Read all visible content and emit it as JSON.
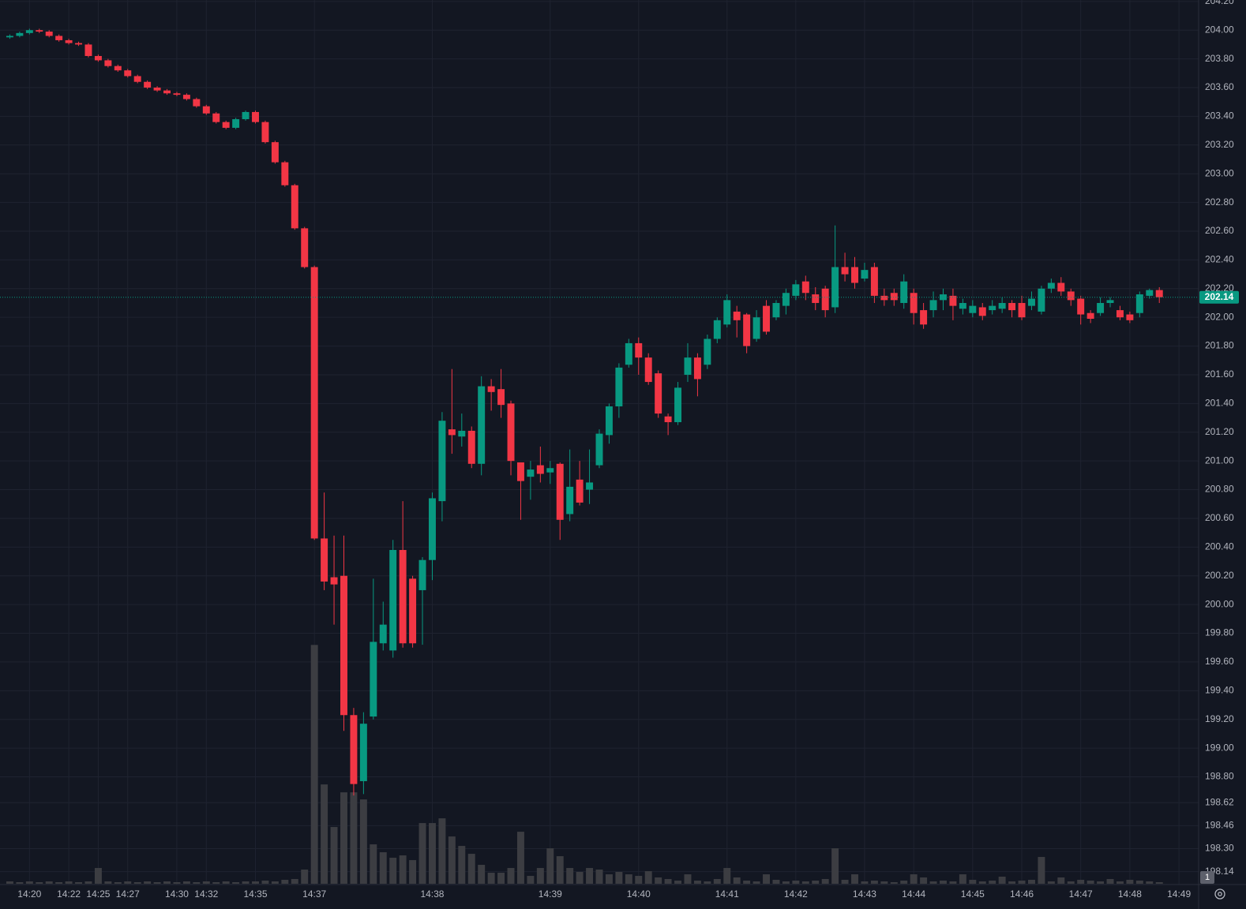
{
  "chart_data": {
    "type": "candlestick",
    "up_color": "#089981",
    "down_color": "#f23645",
    "volume_color": "#3c3d42",
    "grid": true,
    "ylim": [
      198.05,
      204.21
    ],
    "yticks": [
      {
        "value": 204.2,
        "label": "204.20"
      },
      {
        "value": 204.0,
        "label": "204.00"
      },
      {
        "value": 203.8,
        "label": "203.80"
      },
      {
        "value": 203.6,
        "label": "203.60"
      },
      {
        "value": 203.4,
        "label": "203.40"
      },
      {
        "value": 203.2,
        "label": "203.20"
      },
      {
        "value": 203.0,
        "label": "203.00"
      },
      {
        "value": 202.8,
        "label": "202.80"
      },
      {
        "value": 202.6,
        "label": "202.60"
      },
      {
        "value": 202.4,
        "label": "202.40"
      },
      {
        "value": 202.2,
        "label": "202.20"
      },
      {
        "value": 202.0,
        "label": "202.00"
      },
      {
        "value": 201.8,
        "label": "201.80"
      },
      {
        "value": 201.6,
        "label": "201.60"
      },
      {
        "value": 201.4,
        "label": "201.40"
      },
      {
        "value": 201.2,
        "label": "201.20"
      },
      {
        "value": 201.0,
        "label": "201.00"
      },
      {
        "value": 200.8,
        "label": "200.80"
      },
      {
        "value": 200.6,
        "label": "200.60"
      },
      {
        "value": 200.4,
        "label": "200.40"
      },
      {
        "value": 200.2,
        "label": "200.20"
      },
      {
        "value": 200.0,
        "label": "200.00"
      },
      {
        "value": 199.8,
        "label": "199.80"
      },
      {
        "value": 199.6,
        "label": "199.60"
      },
      {
        "value": 199.4,
        "label": "199.40"
      },
      {
        "value": 199.2,
        "label": "199.20"
      },
      {
        "value": 199.0,
        "label": "199.00"
      },
      {
        "value": 198.8,
        "label": "198.80"
      },
      198.62,
      198.46,
      {
        "value": 198.3,
        "label": "198.30"
      },
      198.14
    ],
    "xlim": [
      -1,
      121
    ],
    "xticks": [
      {
        "value": 2,
        "label": "14:20"
      },
      {
        "value": 6,
        "label": "14:22"
      },
      {
        "value": 9,
        "label": "14:25"
      },
      {
        "value": 12,
        "label": "14:27"
      },
      {
        "value": 17,
        "label": "14:30"
      },
      {
        "value": 20,
        "label": "14:32"
      },
      {
        "value": 25,
        "label": "14:35"
      },
      {
        "value": 31,
        "label": "14:37"
      },
      {
        "value": 43,
        "label": "14:38"
      },
      {
        "value": 55,
        "label": "14:39"
      },
      {
        "value": 64,
        "label": "14:40"
      },
      {
        "value": 73,
        "label": "14:41"
      },
      {
        "value": 80,
        "label": "14:42"
      },
      {
        "value": 87,
        "label": "14:43"
      },
      {
        "value": 92,
        "label": "14:44"
      },
      {
        "value": 98,
        "label": "14:45"
      },
      {
        "value": 103,
        "label": "14:46"
      },
      {
        "value": 109,
        "label": "14:47"
      },
      {
        "value": 114,
        "label": "14:48"
      },
      {
        "value": 119,
        "label": "14:49"
      }
    ],
    "last_price": 202.14,
    "scale_button": "1",
    "open": [
      203.95,
      203.96,
      203.98,
      204.0,
      203.99,
      203.96,
      203.93,
      203.91,
      203.9,
      203.82,
      203.79,
      203.75,
      203.72,
      203.68,
      203.64,
      203.6,
      203.58,
      203.56,
      203.55,
      203.52,
      203.47,
      203.42,
      203.36,
      203.32,
      203.38,
      203.43,
      203.36,
      203.22,
      203.08,
      202.92,
      202.62,
      202.35,
      200.46,
      200.19,
      200.2,
      199.23,
      198.77,
      199.22,
      199.73,
      199.68,
      200.38,
      200.18,
      200.1,
      200.31,
      200.72,
      201.22,
      201.17,
      201.21,
      200.98,
      201.52,
      201.5,
      201.4,
      200.99,
      200.89,
      200.97,
      200.92,
      200.98,
      200.63,
      200.87,
      200.8,
      200.97,
      201.18,
      201.38,
      201.67,
      201.82,
      201.72,
      201.61,
      201.31,
      201.27,
      201.6,
      201.72,
      201.67,
      201.85,
      201.95,
      202.04,
      202.02,
      201.85,
      202.08,
      202.0,
      202.08,
      202.15,
      202.25,
      202.16,
      202.2,
      202.07,
      202.35,
      202.35,
      202.27,
      202.35,
      202.15,
      202.17,
      202.1,
      202.17,
      202.05,
      202.05,
      202.12,
      202.15,
      202.06,
      202.03,
      202.07,
      202.05,
      202.06,
      202.1,
      202.1,
      202.08,
      202.04,
      202.2,
      202.24,
      202.18,
      202.13,
      202.03,
      202.03,
      202.1,
      202.05,
      202.02,
      202.03,
      202.15,
      202.19
    ],
    "high": [
      203.97,
      203.99,
      204.01,
      204.01,
      204.0,
      203.97,
      203.94,
      203.92,
      203.91,
      203.83,
      203.8,
      203.76,
      203.73,
      203.69,
      203.65,
      203.61,
      203.59,
      203.57,
      203.56,
      203.53,
      203.48,
      203.43,
      203.37,
      203.39,
      203.44,
      203.44,
      203.37,
      203.23,
      203.09,
      202.93,
      202.63,
      202.36,
      200.78,
      200.48,
      200.48,
      199.28,
      199.25,
      200.18,
      200.02,
      200.45,
      200.72,
      200.2,
      200.33,
      200.78,
      201.34,
      201.64,
      201.33,
      201.24,
      201.59,
      201.57,
      201.64,
      201.42,
      200.99,
      201.0,
      201.1,
      201.0,
      200.99,
      201.08,
      201.0,
      201.08,
      201.22,
      201.4,
      201.68,
      201.85,
      201.86,
      201.75,
      201.63,
      201.33,
      201.55,
      201.82,
      201.75,
      201.88,
      202.0,
      202.16,
      202.08,
      202.03,
      202.05,
      202.12,
      202.12,
      202.2,
      202.26,
      202.29,
      202.21,
      202.22,
      202.64,
      202.45,
      202.42,
      202.38,
      202.38,
      202.2,
      202.2,
      202.3,
      202.2,
      202.1,
      202.18,
      202.2,
      202.2,
      202.13,
      202.12,
      202.1,
      202.12,
      202.14,
      202.12,
      202.15,
      202.18,
      202.22,
      202.27,
      202.28,
      202.2,
      202.15,
      202.05,
      202.14,
      202.14,
      202.08,
      202.04,
      202.18,
      202.2,
      202.21
    ],
    "low": [
      203.94,
      203.95,
      203.97,
      203.98,
      203.95,
      203.92,
      203.9,
      203.89,
      203.81,
      203.78,
      203.74,
      203.71,
      203.67,
      203.63,
      203.59,
      203.57,
      203.55,
      203.54,
      203.51,
      203.46,
      203.41,
      203.35,
      203.31,
      203.31,
      203.37,
      203.35,
      203.21,
      203.07,
      202.91,
      202.61,
      202.34,
      200.45,
      200.1,
      199.86,
      199.12,
      198.67,
      198.68,
      199.2,
      199.68,
      199.63,
      199.7,
      199.7,
      199.72,
      200.17,
      200.58,
      201.05,
      201.1,
      200.95,
      200.9,
      201.35,
      201.3,
      200.9,
      200.59,
      200.73,
      200.85,
      200.84,
      200.45,
      200.58,
      200.69,
      200.7,
      200.95,
      201.12,
      201.3,
      201.65,
      201.6,
      201.53,
      201.3,
      201.18,
      201.25,
      201.55,
      201.45,
      201.64,
      201.82,
      201.93,
      201.86,
      201.75,
      201.83,
      201.88,
      201.98,
      202.02,
      202.12,
      202.12,
      202.05,
      202.0,
      202.03,
      202.25,
      202.2,
      202.25,
      202.1,
      202.08,
      202.08,
      202.06,
      201.95,
      201.92,
      202.0,
      202.05,
      201.98,
      202.02,
      202.0,
      201.98,
      202.02,
      202.03,
      202.0,
      201.98,
      202.05,
      202.02,
      202.17,
      202.15,
      202.08,
      201.95,
      201.96,
      202.01,
      202.07,
      201.98,
      201.96,
      202.0,
      202.13,
      202.1
    ],
    "close": [
      203.96,
      203.98,
      204.0,
      203.99,
      203.96,
      203.93,
      203.91,
      203.9,
      203.82,
      203.79,
      203.75,
      203.72,
      203.68,
      203.64,
      203.6,
      203.58,
      203.56,
      203.55,
      203.52,
      203.47,
      203.42,
      203.36,
      203.32,
      203.38,
      203.43,
      203.36,
      203.22,
      203.08,
      202.92,
      202.62,
      202.35,
      200.46,
      200.16,
      200.14,
      199.23,
      198.75,
      199.17,
      199.74,
      199.86,
      200.38,
      199.73,
      199.73,
      200.31,
      200.74,
      201.28,
      201.18,
      201.21,
      200.98,
      201.52,
      201.48,
      201.39,
      201.0,
      200.86,
      200.94,
      200.91,
      200.95,
      200.59,
      200.82,
      200.71,
      200.85,
      201.19,
      201.38,
      201.65,
      201.82,
      201.72,
      201.55,
      201.33,
      201.27,
      201.51,
      201.72,
      201.57,
      201.85,
      201.98,
      202.12,
      201.98,
      201.8,
      202.0,
      201.9,
      202.1,
      202.17,
      202.23,
      202.17,
      202.1,
      202.05,
      202.35,
      202.3,
      202.24,
      202.33,
      202.15,
      202.12,
      202.12,
      202.25,
      202.03,
      201.95,
      202.12,
      202.16,
      202.08,
      202.1,
      202.08,
      202.01,
      202.08,
      202.1,
      202.05,
      202.0,
      202.13,
      202.2,
      202.24,
      202.18,
      202.12,
      202.02,
      201.99,
      202.1,
      202.12,
      202.0,
      201.98,
      202.16,
      202.19,
      202.14
    ],
    "volume": [
      3,
      2,
      3,
      2,
      3,
      2,
      3,
      2,
      3,
      20,
      3,
      2,
      3,
      2,
      3,
      2,
      3,
      2,
      3,
      2,
      3,
      2,
      3,
      2,
      3,
      3,
      4,
      3,
      5,
      6,
      18,
      303,
      126,
      72,
      116,
      116,
      107,
      50,
      40,
      33,
      36,
      30,
      77,
      77,
      83,
      60,
      48,
      38,
      24,
      14,
      14,
      20,
      66,
      10,
      20,
      45,
      35,
      20,
      15,
      20,
      18,
      12,
      15,
      12,
      10,
      16,
      8,
      6,
      4,
      12,
      4,
      3,
      6,
      20,
      8,
      4,
      3,
      12,
      5,
      3,
      4,
      3,
      4,
      6,
      45,
      5,
      12,
      3,
      4,
      3,
      2,
      4,
      12,
      8,
      3,
      4,
      3,
      12,
      5,
      3,
      4,
      9,
      3,
      4,
      5,
      34,
      3,
      8,
      3,
      5,
      4,
      3,
      6,
      3,
      5,
      4,
      3,
      2
    ]
  }
}
